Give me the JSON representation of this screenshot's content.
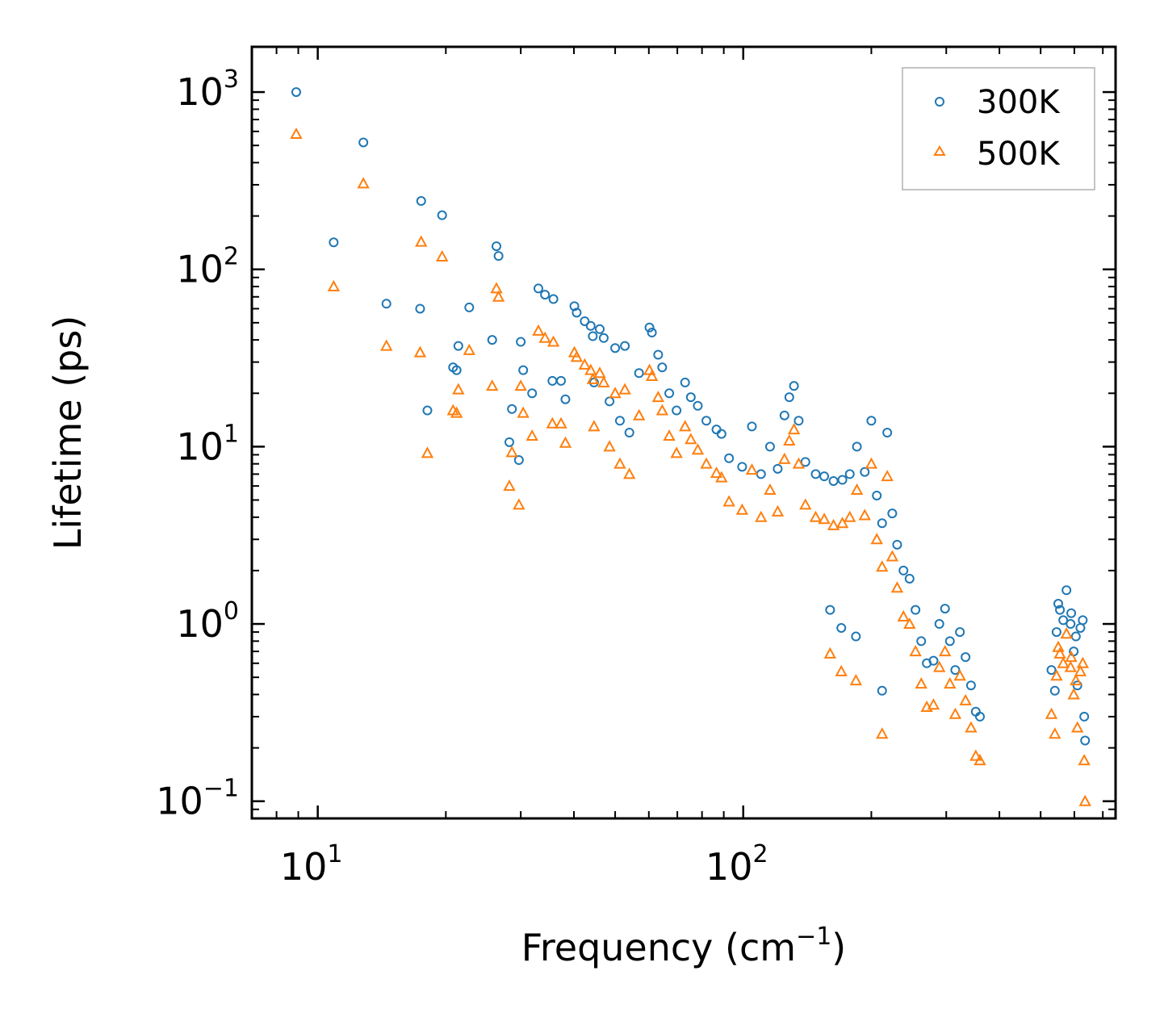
{
  "chart_data": {
    "type": "scatter",
    "title": "",
    "xlabel": "Frequency (cm",
    "xlabel_sup": "−1",
    "xlabel_end": ")",
    "ylabel": "Lifetime (ps)",
    "x_scale": "log",
    "y_scale": "log",
    "xlim": [
      7.0,
      750
    ],
    "ylim": [
      0.08,
      1800
    ],
    "legend_position": "top-right",
    "x_ticks": [
      {
        "value": 10,
        "base": "10",
        "exp": "1"
      },
      {
        "value": 100,
        "base": "10",
        "exp": "2"
      }
    ],
    "y_ticks": [
      {
        "value": 0.1,
        "base": "10",
        "exp": "−1"
      },
      {
        "value": 1,
        "base": "10",
        "exp": "0"
      },
      {
        "value": 10,
        "base": "10",
        "exp": "1"
      },
      {
        "value": 100,
        "base": "10",
        "exp": "2"
      },
      {
        "value": 1000,
        "base": "10",
        "exp": "3"
      }
    ],
    "series": [
      {
        "name": "300K",
        "marker": "circle",
        "color": "#1f77b4",
        "points": [
          [
            8.9,
            1000
          ],
          [
            10.9,
            142
          ],
          [
            12.8,
            520
          ],
          [
            14.5,
            64
          ],
          [
            17.4,
            60
          ],
          [
            17.5,
            243
          ],
          [
            18.1,
            16
          ],
          [
            19.6,
            202
          ],
          [
            20.8,
            28
          ],
          [
            21.2,
            27
          ],
          [
            21.4,
            37
          ],
          [
            22.7,
            61
          ],
          [
            25.7,
            40
          ],
          [
            26.3,
            135
          ],
          [
            26.6,
            119
          ],
          [
            28.2,
            10.6
          ],
          [
            28.6,
            16.3
          ],
          [
            29.7,
            8.4
          ],
          [
            30.0,
            39
          ],
          [
            30.4,
            27
          ],
          [
            31.9,
            20
          ],
          [
            33.0,
            78
          ],
          [
            34.2,
            72
          ],
          [
            35.8,
            68
          ],
          [
            35.6,
            23.5
          ],
          [
            37.3,
            23.5
          ],
          [
            38.2,
            18.5
          ],
          [
            40.1,
            62
          ],
          [
            40.6,
            57
          ],
          [
            42.4,
            51
          ],
          [
            43.8,
            48
          ],
          [
            44.3,
            42
          ],
          [
            44.6,
            23
          ],
          [
            46.0,
            46
          ],
          [
            47.0,
            41
          ],
          [
            48.5,
            18
          ],
          [
            50.0,
            36
          ],
          [
            51.3,
            14
          ],
          [
            52.7,
            37
          ],
          [
            54.0,
            12
          ],
          [
            56.9,
            26
          ],
          [
            60.2,
            47
          ],
          [
            61.0,
            44
          ],
          [
            63.1,
            33
          ],
          [
            64.5,
            28
          ],
          [
            67.0,
            20
          ],
          [
            69.7,
            16
          ],
          [
            73.0,
            23
          ],
          [
            75.3,
            19
          ],
          [
            78.2,
            17
          ],
          [
            81.9,
            14
          ],
          [
            86.5,
            12.5
          ],
          [
            88.9,
            11.8
          ],
          [
            92.6,
            8.6
          ],
          [
            99.4,
            7.7
          ],
          [
            104.8,
            13
          ],
          [
            110.1,
            7.0
          ],
          [
            115.6,
            10
          ],
          [
            120.5,
            7.5
          ],
          [
            125.0,
            15
          ],
          [
            128.3,
            19
          ],
          [
            131.6,
            22
          ],
          [
            135.0,
            14
          ],
          [
            140.0,
            8.2
          ],
          [
            148.0,
            7.0
          ],
          [
            155.0,
            6.8
          ],
          [
            163.0,
            6.4
          ],
          [
            171.0,
            6.5
          ],
          [
            178.0,
            7.0
          ],
          [
            185.0,
            10
          ],
          [
            193.0,
            7.2
          ],
          [
            200.0,
            14
          ],
          [
            206.0,
            5.3
          ],
          [
            212.0,
            3.7
          ],
          [
            218.0,
            12
          ],
          [
            224.0,
            4.2
          ],
          [
            230.0,
            2.8
          ],
          [
            238.0,
            2.0
          ],
          [
            246.0,
            1.8
          ],
          [
            254.0,
            1.2
          ],
          [
            262.0,
            0.8
          ],
          [
            270.0,
            0.6
          ],
          [
            280.0,
            0.62
          ],
          [
            289.0,
            1.0
          ],
          [
            298.0,
            1.22
          ],
          [
            306.0,
            0.8
          ],
          [
            315.0,
            0.55
          ],
          [
            323.0,
            0.9
          ],
          [
            333.0,
            0.65
          ],
          [
            343.0,
            0.45
          ],
          [
            352.0,
            0.32
          ],
          [
            360.0,
            0.3
          ],
          [
            212.0,
            0.42
          ],
          [
            160.0,
            1.2
          ],
          [
            170.0,
            0.95
          ],
          [
            184.0,
            0.85
          ],
          [
            530.0,
            0.55
          ],
          [
            545.0,
            0.9
          ],
          [
            555.0,
            1.2
          ],
          [
            565.0,
            1.05
          ],
          [
            575.0,
            1.55
          ],
          [
            588.0,
            1.0
          ],
          [
            598.0,
            0.7
          ],
          [
            610.0,
            0.45
          ],
          [
            620.0,
            0.95
          ],
          [
            628.0,
            1.05
          ],
          [
            633.0,
            0.3
          ],
          [
            636.0,
            0.22
          ],
          [
            540.0,
            0.42
          ],
          [
            550.0,
            1.3
          ],
          [
            590.0,
            1.15
          ],
          [
            605.0,
            0.85
          ]
        ]
      },
      {
        "name": "500K",
        "marker": "triangle",
        "color": "#ff7f0e",
        "points": [
          [
            8.9,
            580
          ],
          [
            10.9,
            80
          ],
          [
            12.8,
            305
          ],
          [
            14.5,
            37
          ],
          [
            17.4,
            34
          ],
          [
            17.5,
            143
          ],
          [
            18.1,
            9.2
          ],
          [
            19.6,
            118
          ],
          [
            20.8,
            16
          ],
          [
            21.2,
            15.5
          ],
          [
            21.4,
            21
          ],
          [
            22.7,
            35
          ],
          [
            25.7,
            22
          ],
          [
            26.3,
            78
          ],
          [
            26.6,
            70
          ],
          [
            28.2,
            6.0
          ],
          [
            28.6,
            9.3
          ],
          [
            29.7,
            4.7
          ],
          [
            30.0,
            22
          ],
          [
            30.4,
            15.5
          ],
          [
            31.9,
            11.5
          ],
          [
            33.0,
            45
          ],
          [
            34.2,
            41
          ],
          [
            35.8,
            39
          ],
          [
            35.6,
            13.5
          ],
          [
            37.3,
            13.5
          ],
          [
            38.2,
            10.5
          ],
          [
            40.1,
            34
          ],
          [
            40.6,
            32
          ],
          [
            42.4,
            29
          ],
          [
            43.8,
            27
          ],
          [
            44.3,
            24
          ],
          [
            44.6,
            13
          ],
          [
            46.0,
            26
          ],
          [
            47.0,
            23
          ],
          [
            48.5,
            10
          ],
          [
            50.0,
            20
          ],
          [
            51.3,
            8.0
          ],
          [
            52.7,
            21
          ],
          [
            54.0,
            7.0
          ],
          [
            56.9,
            15
          ],
          [
            60.2,
            27
          ],
          [
            61.0,
            25
          ],
          [
            63.1,
            19
          ],
          [
            64.5,
            16
          ],
          [
            67.0,
            11.5
          ],
          [
            69.7,
            9.2
          ],
          [
            73.0,
            13
          ],
          [
            75.3,
            11
          ],
          [
            78.2,
            9.6
          ],
          [
            81.9,
            8.0
          ],
          [
            86.5,
            7.1
          ],
          [
            88.9,
            6.7
          ],
          [
            92.6,
            4.9
          ],
          [
            99.4,
            4.4
          ],
          [
            104.8,
            7.4
          ],
          [
            110.1,
            4.0
          ],
          [
            115.6,
            5.7
          ],
          [
            120.5,
            4.3
          ],
          [
            125.0,
            8.5
          ],
          [
            128.3,
            10.8
          ],
          [
            131.6,
            12.5
          ],
          [
            135.0,
            8.0
          ],
          [
            140.0,
            4.7
          ],
          [
            148.0,
            4.0
          ],
          [
            155.0,
            3.9
          ],
          [
            163.0,
            3.6
          ],
          [
            171.0,
            3.7
          ],
          [
            178.0,
            4.0
          ],
          [
            185.0,
            5.7
          ],
          [
            193.0,
            4.1
          ],
          [
            200.0,
            8.0
          ],
          [
            206.0,
            3.0
          ],
          [
            212.0,
            2.1
          ],
          [
            218.0,
            6.8
          ],
          [
            224.0,
            2.4
          ],
          [
            230.0,
            1.6
          ],
          [
            238.0,
            1.1
          ],
          [
            246.0,
            1.0
          ],
          [
            254.0,
            0.7
          ],
          [
            262.0,
            0.46
          ],
          [
            270.0,
            0.34
          ],
          [
            280.0,
            0.35
          ],
          [
            289.0,
            0.57
          ],
          [
            298.0,
            0.7
          ],
          [
            306.0,
            0.46
          ],
          [
            315.0,
            0.31
          ],
          [
            323.0,
            0.51
          ],
          [
            333.0,
            0.37
          ],
          [
            343.0,
            0.26
          ],
          [
            352.0,
            0.18
          ],
          [
            360.0,
            0.17
          ],
          [
            212.0,
            0.24
          ],
          [
            160.0,
            0.68
          ],
          [
            170.0,
            0.54
          ],
          [
            184.0,
            0.48
          ],
          [
            530.0,
            0.31
          ],
          [
            545.0,
            0.51
          ],
          [
            555.0,
            0.68
          ],
          [
            565.0,
            0.6
          ],
          [
            575.0,
            0.88
          ],
          [
            588.0,
            0.57
          ],
          [
            598.0,
            0.4
          ],
          [
            610.0,
            0.26
          ],
          [
            620.0,
            0.54
          ],
          [
            628.0,
            0.6
          ],
          [
            633.0,
            0.17
          ],
          [
            636.0,
            0.1
          ],
          [
            540.0,
            0.24
          ],
          [
            550.0,
            0.74
          ],
          [
            590.0,
            0.65
          ],
          [
            605.0,
            0.48
          ]
        ]
      }
    ]
  }
}
